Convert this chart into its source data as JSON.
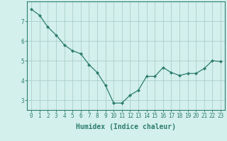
{
  "x": [
    0,
    1,
    2,
    3,
    4,
    5,
    6,
    7,
    8,
    9,
    10,
    11,
    12,
    13,
    14,
    15,
    16,
    17,
    18,
    19,
    20,
    21,
    22,
    23
  ],
  "y": [
    7.6,
    7.3,
    6.7,
    6.3,
    5.8,
    5.5,
    5.35,
    4.8,
    4.4,
    3.75,
    2.85,
    2.85,
    3.25,
    3.5,
    4.2,
    4.2,
    4.65,
    4.4,
    4.25,
    4.35,
    4.35,
    4.6,
    5.0,
    4.95
  ],
  "line_color": "#2d7d6e",
  "marker": "D",
  "marker_size": 2.0,
  "bg_color": "#d4f0ec",
  "grid_color_minor": "#c8e8e4",
  "grid_color_major": "#aacfcb",
  "xlabel": "Humidex (Indice chaleur)",
  "ylim": [
    2.5,
    8.0
  ],
  "xlim": [
    -0.5,
    23.5
  ],
  "yticks": [
    3,
    4,
    5,
    6,
    7
  ],
  "xticks": [
    0,
    1,
    2,
    3,
    4,
    5,
    6,
    7,
    8,
    9,
    10,
    11,
    12,
    13,
    14,
    15,
    16,
    17,
    18,
    19,
    20,
    21,
    22,
    23
  ],
  "xtick_labels": [
    "0",
    "1",
    "2",
    "3",
    "4",
    "5",
    "6",
    "7",
    "8",
    "9",
    "10",
    "11",
    "12",
    "13",
    "14",
    "15",
    "16",
    "17",
    "18",
    "19",
    "20",
    "21",
    "22",
    "23"
  ],
  "xlabel_fontsize": 7,
  "tick_fontsize": 5.5,
  "spine_color": "#2d7d6e",
  "line_width": 0.9
}
